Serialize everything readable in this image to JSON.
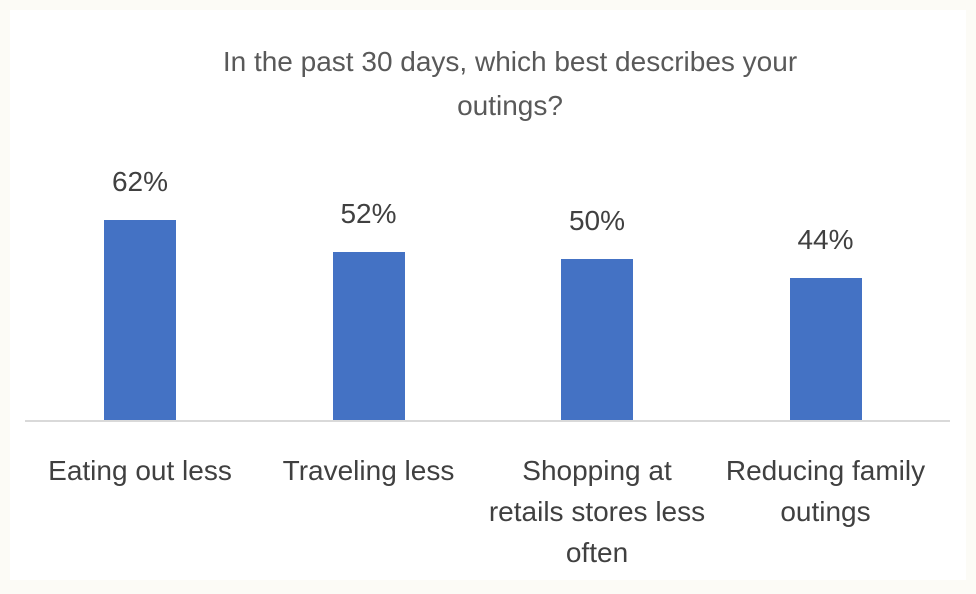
{
  "chart_data": {
    "type": "bar",
    "title": "In the past 30 days, which best describes your outings?",
    "categories": [
      "Eating out less",
      "Traveling less",
      "Shopping at retails stores less often",
      "Reducing family outings"
    ],
    "values": [
      62,
      52,
      50,
      44
    ],
    "value_labels": [
      "62%",
      "52%",
      "50%",
      "44%"
    ],
    "color": "#4472c4"
  }
}
